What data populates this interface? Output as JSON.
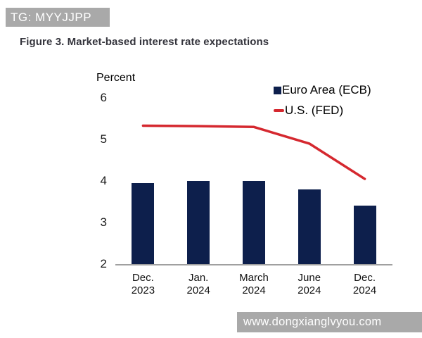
{
  "watermarks": {
    "top": "TG: MYYJJPP",
    "bottom": "www.dongxianglvyou.com"
  },
  "figure": {
    "title": "Figure 3. Market-based interest rate expectations"
  },
  "chart_data": {
    "type": "bar+line",
    "title": "Figure 3. Market-based interest rate expectations",
    "ylabel": "Percent",
    "xlabel": "",
    "ylim": [
      2,
      6.2
    ],
    "yticks": [
      6,
      5,
      4,
      3,
      2
    ],
    "grid": false,
    "legend_position": "top-right",
    "categories": [
      "Dec. 2023",
      "Jan. 2024",
      "March 2024",
      "June 2024",
      "Dec. 2024"
    ],
    "category_lines": [
      [
        "Dec.",
        "2023"
      ],
      [
        "Jan.",
        "2024"
      ],
      [
        "March",
        "2024"
      ],
      [
        "June",
        "2024"
      ],
      [
        "Dec.",
        "2024"
      ]
    ],
    "series": [
      {
        "name": "Euro Area (ECB)",
        "type": "bar",
        "color": "#0d1f4c",
        "values": [
          3.95,
          4.0,
          4.0,
          3.8,
          3.4
        ]
      },
      {
        "name": "U.S. (FED)",
        "type": "line",
        "color": "#d5282f",
        "values": [
          5.33,
          5.32,
          5.3,
          4.9,
          4.05
        ]
      }
    ],
    "colors": {
      "axis_line": "#a0a0a0",
      "tick_text": "#1a1a1a",
      "title_text": "#34343c",
      "watermark_bg": "#a9a9a9",
      "watermark_text": "#ffffff",
      "background": "#ffffff"
    }
  }
}
